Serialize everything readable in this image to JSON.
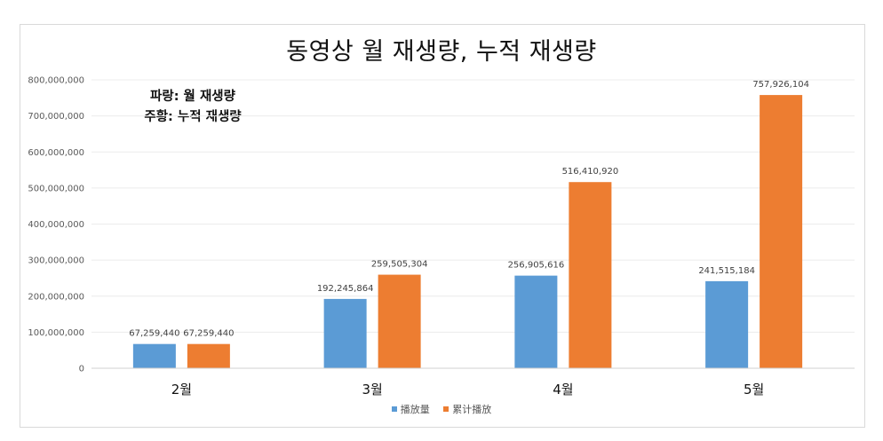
{
  "chart_data": {
    "type": "bar",
    "title": "동영상 월 재생량, 누적 재생량",
    "annotations": [
      "파랑: 월 재생량",
      "주황: 누적 재생량"
    ],
    "categories": [
      "2월",
      "3월",
      "4월",
      "5월"
    ],
    "series": [
      {
        "name": "播放量",
        "color": "#5b9bd5",
        "values": [
          67259440,
          192245864,
          256905616,
          241515184
        ],
        "labels": [
          "67,259,440",
          "192,245,864",
          "256,905,616",
          "241,515,184"
        ]
      },
      {
        "name": "累计播放",
        "color": "#ed7d31",
        "values": [
          67259440,
          259505304,
          516410920,
          757926104
        ],
        "labels": [
          "67,259,440",
          "259,505,304",
          "516,410,920",
          "757,926,104"
        ]
      }
    ],
    "ylim": [
      0,
      800000000
    ],
    "yticks": [
      0,
      100000000,
      200000000,
      300000000,
      400000000,
      500000000,
      600000000,
      700000000,
      800000000
    ],
    "ytick_labels": [
      "0",
      "100,000,000",
      "200,000,000",
      "300,000,000",
      "400,000,000",
      "500,000,000",
      "600,000,000",
      "700,000,000",
      "800,000,000"
    ],
    "grid": true,
    "legend": "bottom-center"
  }
}
